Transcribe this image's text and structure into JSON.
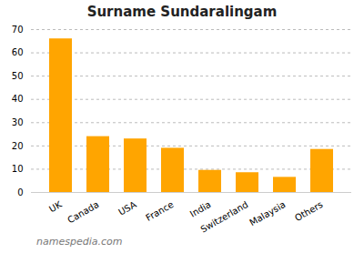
{
  "chart_data": {
    "type": "bar",
    "title": "Surname Sundaralingam",
    "categories": [
      "UK",
      "Canada",
      "USA",
      "France",
      "India",
      "Switzerland",
      "Malaysia",
      "Others"
    ],
    "values": [
      66,
      24,
      23,
      19,
      9.5,
      8.5,
      6.5,
      18.5
    ],
    "color": "#FFA500",
    "ylim": [
      0,
      70
    ],
    "yticks": [
      0,
      10,
      20,
      30,
      40,
      50,
      60,
      70
    ],
    "grid": true,
    "caption": "namespedia.com"
  }
}
